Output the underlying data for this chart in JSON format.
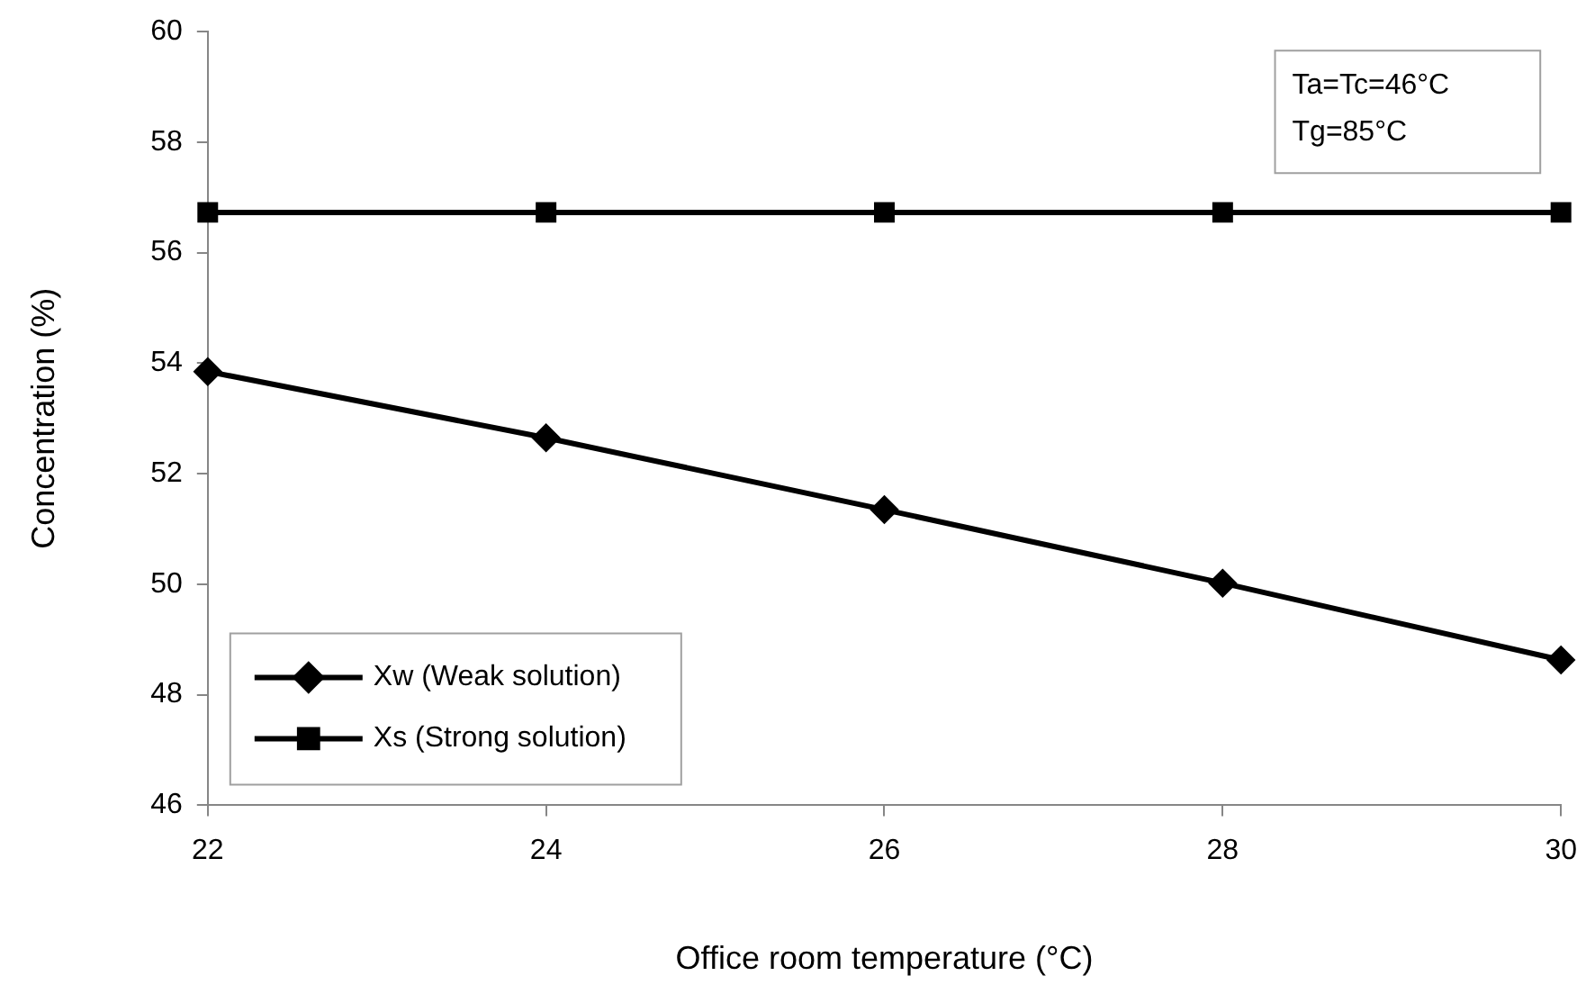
{
  "chart_data": {
    "type": "line",
    "xlabel": "Office room temperature (°C)",
    "ylabel": "Concentration (%)",
    "x": [
      22,
      24,
      26,
      28,
      30
    ],
    "series": [
      {
        "name": "Xw (Weak solution)",
        "color": "#000000",
        "marker": "diamond",
        "values": [
          53.85,
          52.65,
          51.35,
          50.02,
          48.63
        ]
      },
      {
        "name": "Xs (Strong solution)",
        "color": "#000000",
        "marker": "square",
        "values": [
          56.73,
          56.73,
          56.73,
          56.73,
          56.73
        ]
      }
    ],
    "xlim": [
      22,
      30
    ],
    "xticks": [
      22,
      24,
      26,
      28,
      30
    ],
    "ylim": [
      46,
      60
    ],
    "yticks": [
      46,
      48,
      50,
      52,
      54,
      56,
      58,
      60
    ],
    "grid": false,
    "legend": "bottom left",
    "line_style": "solid",
    "annotations": [
      "Ta=Tc=46°C",
      "Tg=85°C"
    ]
  }
}
